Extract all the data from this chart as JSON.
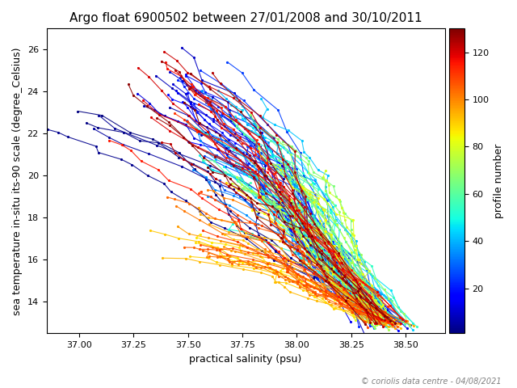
{
  "title": "Argo float 6900502 between 27/01/2008 and 30/10/2011",
  "xlabel": "practical salinity (psu)",
  "ylabel": "sea temperature in-situ its-90 scale (degree_Celsius)",
  "colorbar_label": "profile number",
  "colorbar_ticks": [
    20,
    40,
    60,
    80,
    100,
    120
  ],
  "n_profiles": 130,
  "salinity_xlim": [
    36.85,
    38.68
  ],
  "temp_ylim": [
    12.5,
    27.0
  ],
  "copyright": "© coriolis data centre - 04/08/2021",
  "background_color": "white",
  "cmap": "jet",
  "xticks": [
    37.0,
    37.25,
    37.5,
    37.75,
    38.0,
    38.25,
    38.5
  ],
  "yticks": [
    14,
    16,
    18,
    20,
    22,
    24,
    26
  ],
  "linewidth": 0.8,
  "markersize": 2.5,
  "title_fontsize": 11,
  "label_fontsize": 9,
  "tick_fontsize": 8,
  "colorbar_tick_fontsize": 8,
  "copyright_fontsize": 7
}
